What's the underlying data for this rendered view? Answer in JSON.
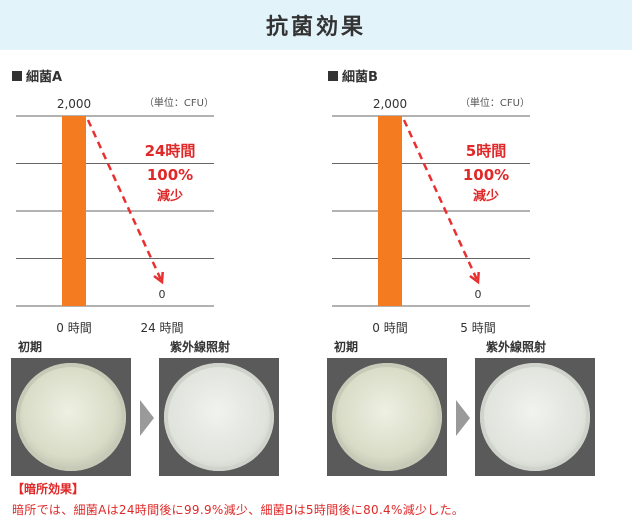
{
  "header": {
    "title": "抗菌効果"
  },
  "panels": [
    {
      "label": "細菌A",
      "unit": "（単位：CFU）",
      "caption_left": "初期",
      "caption_right": "紫外線照射",
      "annotation": [
        "24時間",
        "100%",
        "減少"
      ],
      "top_value_label": "2,000",
      "end_value_label": "0"
    },
    {
      "label": "細菌B",
      "unit": "（単位：CFU）",
      "caption_left": "初期",
      "caption_right": "紫外線照射",
      "annotation": [
        "5時間",
        "100%",
        "減少"
      ],
      "top_value_label": "2,000",
      "end_value_label": "0"
    }
  ],
  "dark_effect": {
    "title": "【暗所効果】",
    "text": "暗所では、細菌Aは24時間後に99.9%減少、細菌Bは5時間後に80.4%減少した。"
  },
  "colors": {
    "bar": "#f47b20",
    "arrow": "#e83030",
    "text_red": "#e02828",
    "header_bg": "#e2f3fa"
  },
  "chart_data": [
    {
      "type": "bar",
      "title": "細菌A",
      "categories": [
        "0 時間",
        "24 時間"
      ],
      "values": [
        2000,
        0
      ],
      "ylim": [
        0,
        2000
      ],
      "grid": true,
      "unit_label": "（単位：CFU）"
    },
    {
      "type": "bar",
      "title": "細菌B",
      "categories": [
        "0 時間",
        "5 時間"
      ],
      "values": [
        2000,
        0
      ],
      "ylim": [
        0,
        2000
      ],
      "grid": true,
      "unit_label": "（単位：CFU）"
    }
  ]
}
